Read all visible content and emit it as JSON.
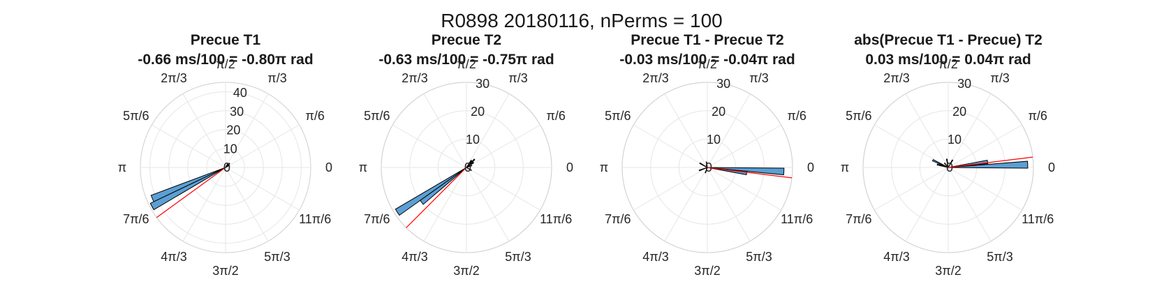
{
  "figure": {
    "title": "R0898 20180116, nPerms = 100"
  },
  "angle_ticks": [
    "0",
    "π/6",
    "π/3",
    "π/2",
    "2π/3",
    "5π/6",
    "π",
    "7π/6",
    "4π/3",
    "3π/2",
    "5π/3",
    "11π/6"
  ],
  "colors": {
    "bar": "#5b9fd4",
    "mean_line": "#ff0000",
    "grid": "#e6e6e6"
  },
  "chart_data": [
    {
      "type": "polar-histogram",
      "title": "Precue T1",
      "subtitle": "-0.66 ms/100 = -0.80π rad",
      "rlim": [
        0,
        45
      ],
      "rticks": [
        "0",
        "10",
        "20",
        "30",
        "40"
      ],
      "rtick_values": [
        0,
        10,
        20,
        30,
        40
      ],
      "bin_width_deg": 5,
      "bins": [
        {
          "angle_deg": 203,
          "count": 42
        },
        {
          "angle_deg": 208,
          "count": 44
        },
        {
          "angle_deg": 45,
          "count": 3
        },
        {
          "angle_deg": 60,
          "count": 2
        },
        {
          "angle_deg": 30,
          "count": 2
        }
      ],
      "mean_angle_deg": 216,
      "mean_length": 45
    },
    {
      "type": "polar-histogram",
      "title": "Precue T2",
      "subtitle": "-0.63 ms/100 = -0.75π rad",
      "rlim": [
        0,
        30
      ],
      "rticks": [
        "0",
        "10",
        "20",
        "30"
      ],
      "rtick_values": [
        0,
        10,
        20,
        30
      ],
      "bin_width_deg": 5,
      "bins": [
        {
          "angle_deg": 213,
          "count": 29
        },
        {
          "angle_deg": 218,
          "count": 20
        },
        {
          "angle_deg": 45,
          "count": 4
        },
        {
          "angle_deg": 55,
          "count": 3
        },
        {
          "angle_deg": 35,
          "count": 3
        },
        {
          "angle_deg": 330,
          "count": 2
        },
        {
          "angle_deg": 20,
          "count": 2
        }
      ],
      "mean_angle_deg": 225,
      "mean_length": 30
    },
    {
      "type": "polar-histogram",
      "title": "Precue T1 - Precue T2",
      "subtitle": "-0.03 ms/100 = -0.04π rad",
      "rlim": [
        0,
        30
      ],
      "rticks": [
        "0",
        "10",
        "20",
        "30"
      ],
      "rtick_values": [
        0,
        10,
        20,
        30
      ],
      "bin_width_deg": 5,
      "bins": [
        {
          "angle_deg": 357,
          "count": 27
        },
        {
          "angle_deg": 352,
          "count": 14
        },
        {
          "angle_deg": 150,
          "count": 3
        },
        {
          "angle_deg": 200,
          "count": 3
        },
        {
          "angle_deg": 250,
          "count": 2
        },
        {
          "angle_deg": 100,
          "count": 2
        }
      ],
      "mean_angle_deg": 353,
      "mean_length": 30
    },
    {
      "type": "polar-histogram",
      "title": "abs(Precue T1 - Precue) T2",
      "subtitle": "0.03 ms/100 = 0.04π rad",
      "rlim": [
        0,
        30
      ],
      "rticks": [
        "0",
        "10",
        "20",
        "30"
      ],
      "rtick_values": [
        0,
        10,
        20,
        30
      ],
      "bin_width_deg": 5,
      "bins": [
        {
          "angle_deg": 2,
          "count": 28
        },
        {
          "angle_deg": 8,
          "count": 14
        },
        {
          "angle_deg": 155,
          "count": 6
        },
        {
          "angle_deg": 165,
          "count": 4
        },
        {
          "angle_deg": 100,
          "count": 3
        },
        {
          "angle_deg": 60,
          "count": 3
        },
        {
          "angle_deg": 130,
          "count": 2
        }
      ],
      "mean_angle_deg": 7,
      "mean_length": 30
    }
  ]
}
